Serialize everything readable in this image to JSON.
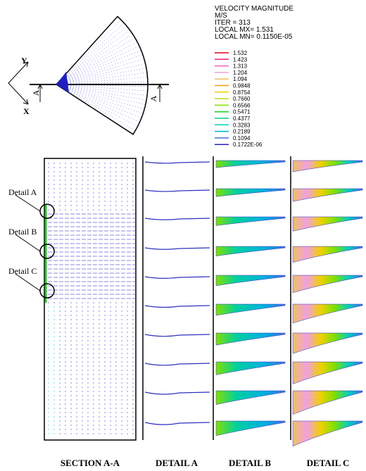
{
  "legend": {
    "header": [
      "VELOCITY MAGNITUDE",
      "M/S",
      "ITER =    313",
      "LOCAL MX=  1.531",
      "LOCAL MN= 0.1150E-05"
    ],
    "items": [
      {
        "label": "1.532",
        "color": "#e8001c"
      },
      {
        "label": "1.423",
        "color": "#f0207a"
      },
      {
        "label": "1.313",
        "color": "#f060c0"
      },
      {
        "label": "1.204",
        "color": "#f0a0e0"
      },
      {
        "label": "1.094",
        "color": "#f0c060"
      },
      {
        "label": "0.9848",
        "color": "#f0a000"
      },
      {
        "label": "0.8754",
        "color": "#f0d000"
      },
      {
        "label": "0.7660",
        "color": "#c0e000"
      },
      {
        "label": "0.6566",
        "color": "#80e000"
      },
      {
        "label": "0.5471",
        "color": "#20d020"
      },
      {
        "label": "0.4377",
        "color": "#00d080"
      },
      {
        "label": "0.3283",
        "color": "#00d0c0"
      },
      {
        "label": "0.2189",
        "color": "#00b0e0"
      },
      {
        "label": "0.1094",
        "color": "#4070e0"
      },
      {
        "label": "0.1722E-06",
        "color": "#2020c0"
      }
    ]
  },
  "axes": {
    "y": "Y",
    "x": "X"
  },
  "cut": [
    "A",
    "A"
  ],
  "details": [
    "Detail A",
    "Detail B",
    "Detail C"
  ],
  "captions": [
    "SECTION A-A",
    "DETAIL A",
    "DETAIL B",
    "DETAIL C"
  ]
}
